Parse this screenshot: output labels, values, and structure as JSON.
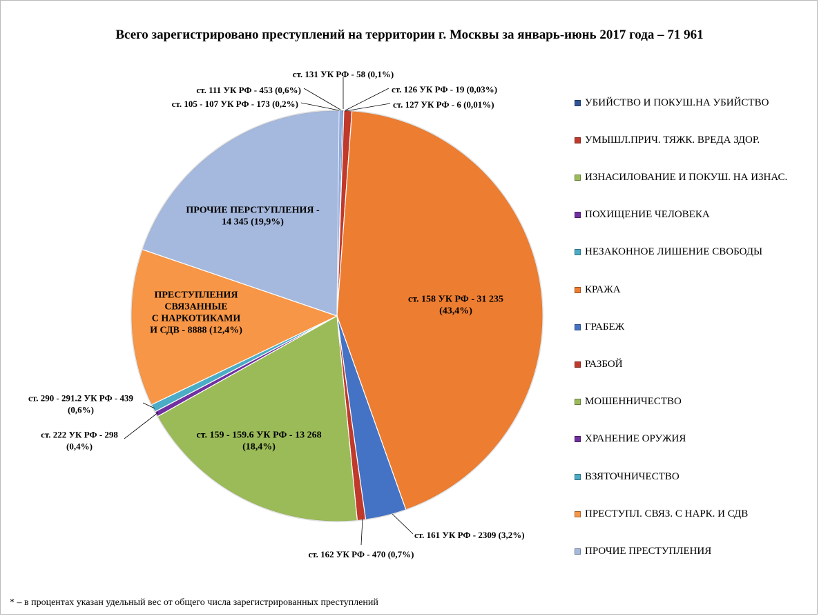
{
  "chart_data": {
    "type": "pie",
    "title": "Всего зарегистрировано преступлений на территории г. Москвы за январь-июнь 2017 года – 71 961",
    "total": 71961,
    "slices": [
      {
        "legend": "УБИЙСТВО И ПОКУШ.НА УБИЙСТВО",
        "value": 58,
        "percent": 0.1,
        "color": "#2f5597",
        "label_lines": [
          "ст. 131 УК РФ - 58 (0,1%)"
        ]
      },
      {
        "legend": "",
        "value": 19,
        "percent": 0.03,
        "color": "#7f7f7f",
        "label_lines": [
          "ст. 126 УК РФ - 19 (0,03%)"
        ]
      },
      {
        "legend": "",
        "value": 6,
        "percent": 0.01,
        "color": "#595959",
        "label_lines": [
          "ст. 127 УК РФ - 6 (0,01%)"
        ]
      },
      {
        "legend": "УМЫШЛ.ПРИЧ. ТЯЖК. ВРЕДА ЗДОР.",
        "value": 453,
        "percent": 0.6,
        "color": "#c0392b",
        "label_lines": [
          "ст. 111 УК РФ - 453 (0,6%)"
        ]
      },
      {
        "legend": "КРАЖА",
        "value": 31235,
        "percent": 43.4,
        "color": "#ed7d31",
        "label_lines": [
          "ст. 158 УК РФ - 31 235",
          "(43,4%)"
        ]
      },
      {
        "legend": "ГРАБЕЖ",
        "value": 2309,
        "percent": 3.2,
        "color": "#4472c4",
        "label_lines": [
          "ст. 161 УК РФ - 2309 (3,2%)"
        ]
      },
      {
        "legend": "РАЗБОЙ",
        "value": 470,
        "percent": 0.7,
        "color": "#c0392b",
        "label_lines": [
          "ст. 162 УК РФ - 470 (0,7%)"
        ]
      },
      {
        "legend": "МОШЕННИЧЕСТВО",
        "value": 13268,
        "percent": 18.4,
        "color": "#9bbb59",
        "label_lines": [
          "ст. 159 - 159.6 УК РФ - 13 268",
          "(18,4%)"
        ]
      },
      {
        "legend": "ХРАНЕНИЕ ОРУЖИЯ",
        "value": 298,
        "percent": 0.4,
        "color": "#7030a0",
        "label_lines": [
          "ст. 222 УК РФ - 298",
          "(0,4%)"
        ]
      },
      {
        "legend": "ВЗЯТОЧНИЧЕСТВО",
        "value": 439,
        "percent": 0.6,
        "color": "#4bacc6",
        "label_lines": [
          "ст. 290 - 291.2 УК РФ - 439",
          "(0,6%)"
        ]
      },
      {
        "legend": "ПРЕСТУПЛ. СВЯЗ. С НАРК. И СДВ",
        "value": 8888,
        "percent": 12.4,
        "color": "#f79646",
        "label_lines": [
          "ПРЕСТУПЛЕНИЯ",
          "СВЯЗАННЫЕ",
          "С НАРКОТИКАМИ",
          "И СДВ - 8888 (12,4%)"
        ]
      },
      {
        "legend": "ПРОЧИЕ ПРЕСТУПЛЕНИЯ",
        "value": 14345,
        "percent": 19.9,
        "color": "#a5b8dd",
        "label_lines": [
          "ПРОЧИЕ ПЕРСТУПЛЕНИЯ -",
          "14 345 (19,9%)"
        ]
      },
      {
        "legend": "",
        "value": 173,
        "percent": 0.2,
        "color": "#8faadc",
        "label_lines": [
          "ст. 105 - 107 УК РФ - 173 (0,2%)"
        ]
      }
    ],
    "legend": [
      {
        "label": "УБИЙСТВО И ПОКУШ.НА УБИЙСТВО",
        "color": "#2f5597"
      },
      {
        "label": "УМЫШЛ.ПРИЧ. ТЯЖК. ВРЕДА ЗДОР.",
        "color": "#c0392b"
      },
      {
        "label": "ИЗНАСИЛОВАНИЕ И ПОКУШ. НА ИЗНАС.",
        "color": "#9bbb59"
      },
      {
        "label": "ПОХИЩЕНИЕ ЧЕЛОВЕКА",
        "color": "#7030a0"
      },
      {
        "label": "НЕЗАКОННОЕ ЛИШЕНИЕ СВОБОДЫ",
        "color": "#4bacc6"
      },
      {
        "label": "КРАЖА",
        "color": "#ed7d31"
      },
      {
        "label": "ГРАБЕЖ",
        "color": "#4472c4"
      },
      {
        "label": "РАЗБОЙ",
        "color": "#c0392b"
      },
      {
        "label": "МОШЕННИЧЕСТВО",
        "color": "#9bbb59"
      },
      {
        "label": "ХРАНЕНИЕ ОРУЖИЯ",
        "color": "#7030a0"
      },
      {
        "label": "ВЗЯТОЧНИЧЕСТВО",
        "color": "#4bacc6"
      },
      {
        "label": "ПРЕСТУПЛ. СВЯЗ. С НАРК. И СДВ",
        "color": "#f79646"
      },
      {
        "label": "ПРОЧИЕ ПРЕСТУПЛЕНИЯ",
        "color": "#a5b8dd"
      }
    ],
    "legend_placement": "right"
  },
  "footnote": "* – в процентах указан удельный вес от общего числа зарегистрированных преступлений"
}
